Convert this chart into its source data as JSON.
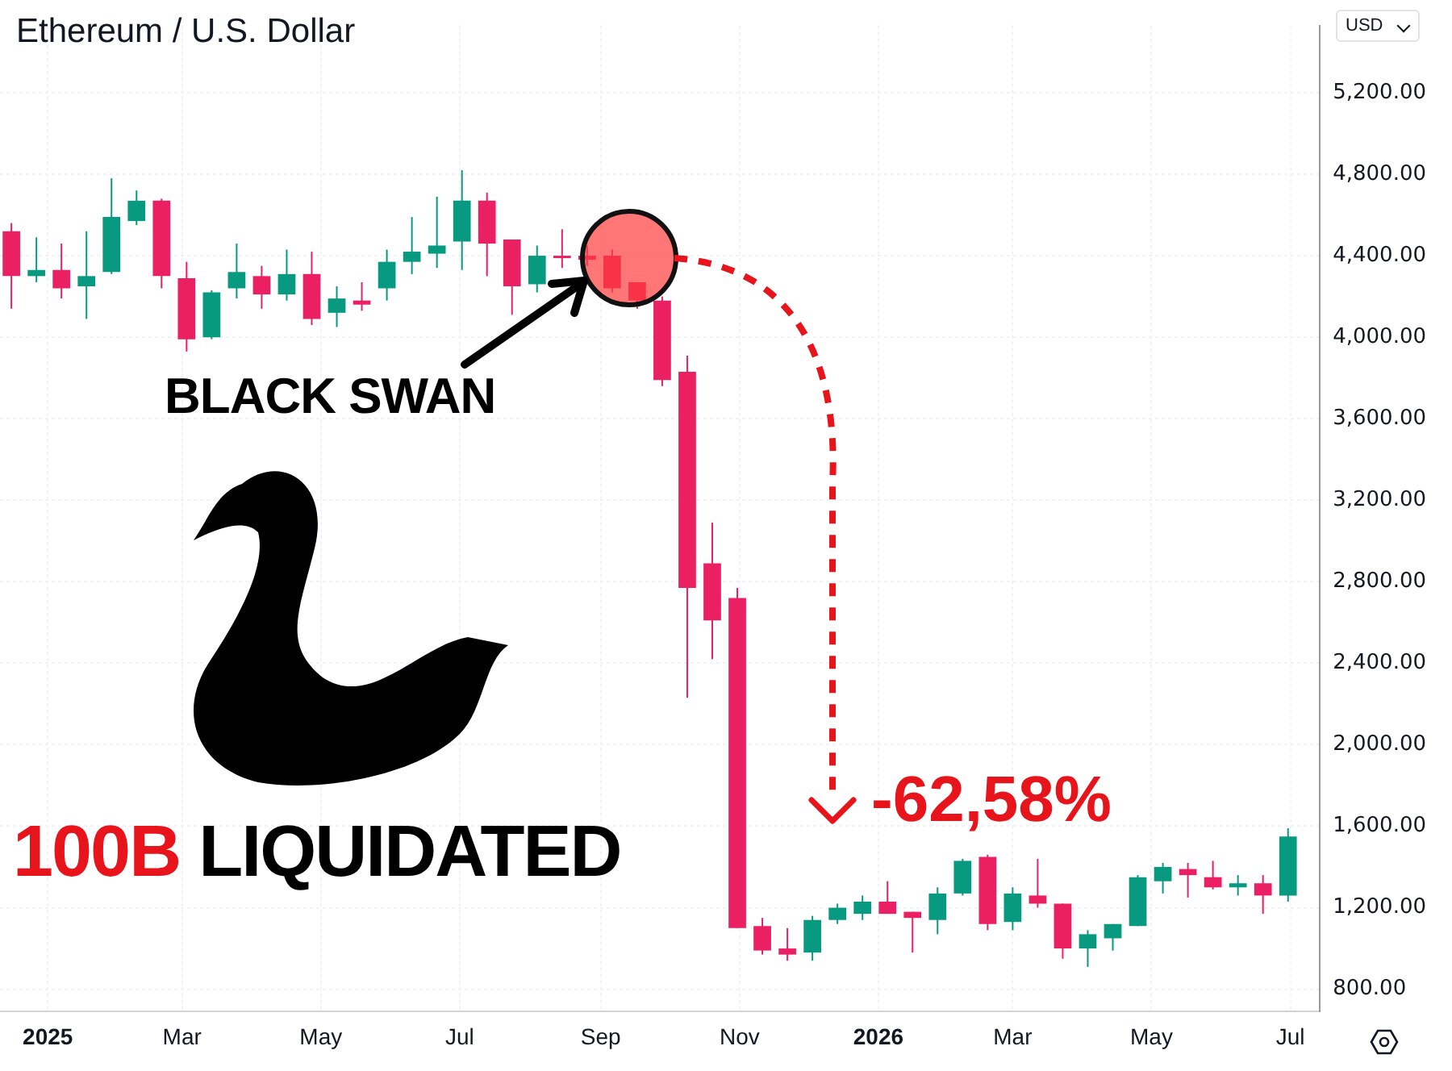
{
  "chart_data": {
    "type": "candlestick",
    "title": "Ethereum / U.S. Dollar",
    "annotations": [
      "BLACK SWAN",
      "100B LIQUIDATED",
      "-62,58%",
      "USD"
    ],
    "x": [
      "2024-12-16",
      "2024-12-27",
      "2025-01-07",
      "2025-01-18",
      "2025-01-29",
      "2025-02-09",
      "2025-02-20",
      "2025-03-03",
      "2025-03-14",
      "2025-03-25",
      "2025-04-05",
      "2025-04-16",
      "2025-04-27",
      "2025-05-08",
      "2025-05-19",
      "2025-05-30",
      "2025-06-10",
      "2025-06-21",
      "2025-07-02",
      "2025-07-13",
      "2025-07-24",
      "2025-08-04",
      "2025-08-15",
      "2025-08-26",
      "2025-09-06",
      "2025-09-17",
      "2025-09-28",
      "2025-10-09",
      "2025-10-20",
      "2025-10-31",
      "2025-11-11",
      "2025-11-22",
      "2025-12-03",
      "2025-12-14",
      "2025-12-25",
      "2026-01-05",
      "2026-01-16",
      "2026-01-27",
      "2026-02-07",
      "2026-02-18",
      "2026-03-01",
      "2026-03-12",
      "2026-03-23",
      "2026-04-03",
      "2026-04-14",
      "2026-04-25",
      "2026-05-06",
      "2026-05-17",
      "2026-05-28",
      "2026-06-08",
      "2026-06-19",
      "2026-06-30"
    ],
    "ohlc": [
      [
        4520,
        4560,
        4140,
        4300
      ],
      [
        4300,
        4490,
        4270,
        4330
      ],
      [
        4330,
        4460,
        4190,
        4240
      ],
      [
        4250,
        4520,
        4090,
        4300
      ],
      [
        4320,
        4780,
        4310,
        4590
      ],
      [
        4570,
        4720,
        4550,
        4670
      ],
      [
        4670,
        4680,
        4240,
        4300
      ],
      [
        4290,
        4370,
        3930,
        3990
      ],
      [
        4000,
        4230,
        3990,
        4220
      ],
      [
        4240,
        4460,
        4190,
        4320
      ],
      [
        4300,
        4350,
        4140,
        4210
      ],
      [
        4210,
        4430,
        4180,
        4310
      ],
      [
        4310,
        4420,
        4060,
        4090
      ],
      [
        4120,
        4250,
        4050,
        4190
      ],
      [
        4180,
        4270,
        4130,
        4160
      ],
      [
        4240,
        4430,
        4180,
        4370
      ],
      [
        4370,
        4590,
        4310,
        4420
      ],
      [
        4410,
        4690,
        4340,
        4450
      ],
      [
        4470,
        4820,
        4330,
        4670
      ],
      [
        4670,
        4710,
        4300,
        4460
      ],
      [
        4480,
        4480,
        4110,
        4250
      ],
      [
        4260,
        4450,
        4220,
        4400
      ],
      [
        4400,
        4530,
        4340,
        4390
      ],
      [
        4400,
        4450,
        4350,
        4380
      ],
      [
        4400,
        4430,
        4220,
        4240
      ],
      [
        4270,
        4270,
        4140,
        4180
      ],
      [
        4180,
        4200,
        3760,
        3790
      ],
      [
        3830,
        3910,
        2230,
        2770
      ],
      [
        2890,
        3090,
        2420,
        2610
      ],
      [
        2720,
        2770,
        1100,
        1100
      ],
      [
        1110,
        1150,
        970,
        990
      ],
      [
        1000,
        1100,
        940,
        970
      ],
      [
        980,
        1160,
        940,
        1140
      ],
      [
        1140,
        1220,
        1120,
        1200
      ],
      [
        1170,
        1260,
        1140,
        1230
      ],
      [
        1230,
        1330,
        1170,
        1170
      ],
      [
        1180,
        1180,
        980,
        1150
      ],
      [
        1140,
        1300,
        1070,
        1270
      ],
      [
        1270,
        1440,
        1260,
        1430
      ],
      [
        1450,
        1460,
        1090,
        1120
      ],
      [
        1130,
        1300,
        1090,
        1270
      ],
      [
        1260,
        1440,
        1200,
        1220
      ],
      [
        1220,
        1220,
        950,
        1000
      ],
      [
        1000,
        1090,
        910,
        1070
      ],
      [
        1050,
        1120,
        990,
        1120
      ],
      [
        1110,
        1360,
        1110,
        1350
      ],
      [
        1330,
        1420,
        1270,
        1400
      ],
      [
        1390,
        1420,
        1250,
        1360
      ],
      [
        1350,
        1430,
        1290,
        1300
      ],
      [
        1300,
        1360,
        1260,
        1320
      ],
      [
        1320,
        1360,
        1170,
        1260
      ],
      [
        1260,
        1590,
        1230,
        1550
      ]
    ],
    "colors": [
      "#eb2063",
      "#089981",
      "#eb2063",
      "#089981",
      "#089981",
      "#089981",
      "#eb2063",
      "#eb2063",
      "#089981",
      "#089981",
      "#eb2063",
      "#089981",
      "#eb2063",
      "#089981",
      "#eb2063",
      "#089981",
      "#089981",
      "#089981",
      "#089981",
      "#eb2063",
      "#eb2063",
      "#089981",
      "#eb2063",
      "#eb2063",
      "#eb2063",
      "#eb2063",
      "#eb2063",
      "#eb2063",
      "#eb2063",
      "#eb2063",
      "#eb2063",
      "#eb2063",
      "#089981",
      "#089981",
      "#089981",
      "#eb2063",
      "#eb2063",
      "#089981",
      "#089981",
      "#eb2063",
      "#089981",
      "#eb2063",
      "#eb2063",
      "#089981",
      "#089981",
      "#089981",
      "#089981",
      "#eb2063",
      "#eb2063",
      "#089981",
      "#eb2063",
      "#089981"
    ],
    "xlim": [
      "2024-12-11",
      "2026-07-14"
    ],
    "xticks": [
      {
        "value": "2025-01-01",
        "label": "2025"
      },
      {
        "value": "2025-03-01",
        "label": "Mar"
      },
      {
        "value": "2025-05-01",
        "label": "May"
      },
      {
        "value": "2025-07-01",
        "label": "Jul"
      },
      {
        "value": "2025-09-01",
        "label": "Sep"
      },
      {
        "value": "2025-11-01",
        "label": "Nov"
      },
      {
        "value": "2026-01-01",
        "label": "2026"
      },
      {
        "value": "2026-03-01",
        "label": "Mar"
      },
      {
        "value": "2026-05-01",
        "label": "May"
      },
      {
        "value": "2026-07-01",
        "label": "Jul"
      }
    ],
    "ylim": [
      690,
      5530
    ],
    "yticks": [
      {
        "value": 800,
        "label": "800.00"
      },
      {
        "value": 1200,
        "label": "1,200.00"
      },
      {
        "value": 1600,
        "label": "1,600.00"
      },
      {
        "value": 2000,
        "label": "2,000.00"
      },
      {
        "value": 2400,
        "label": "2,400.00"
      },
      {
        "value": 2800,
        "label": "2,800.00"
      },
      {
        "value": 3200,
        "label": "3,200.00"
      },
      {
        "value": 3600,
        "label": "3,600.00"
      },
      {
        "value": 4000,
        "label": "4,000.00"
      },
      {
        "value": 4400,
        "label": "4,400.00"
      },
      {
        "value": 4800,
        "label": "4,800.00"
      },
      {
        "value": 5200,
        "label": "5,200.00"
      }
    ],
    "grid": true,
    "legend": false
  }
}
